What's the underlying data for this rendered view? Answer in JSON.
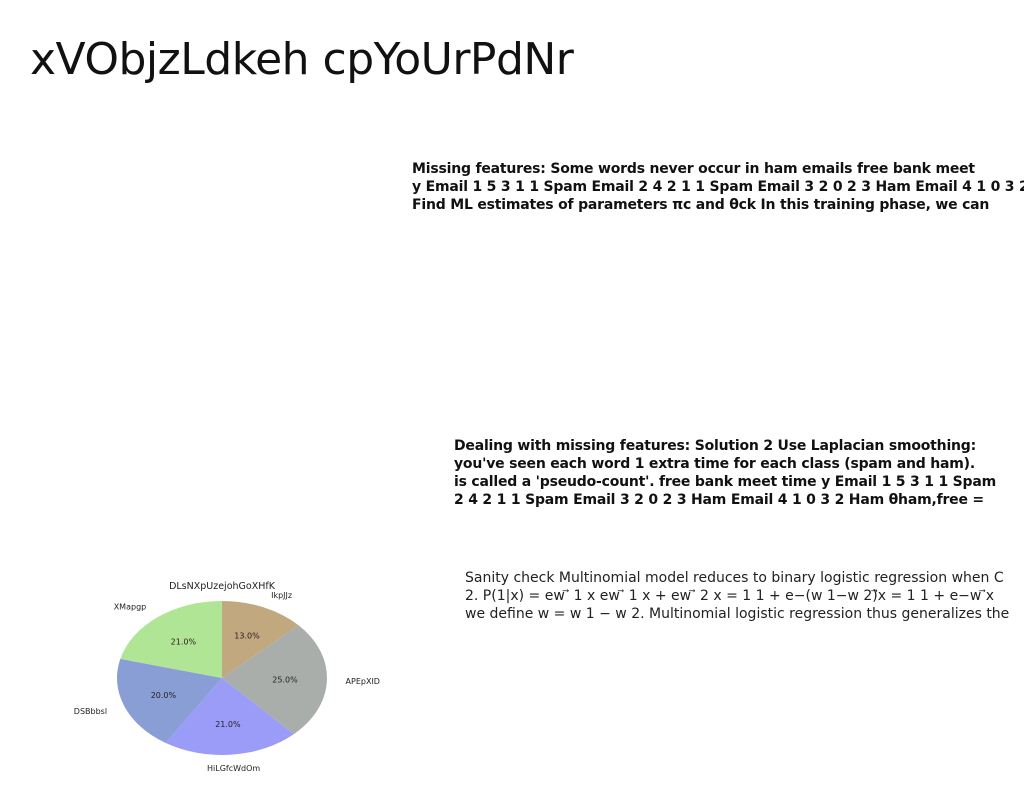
{
  "slide": {
    "title": "xVObjzLdkeh cpYoUrPdNr",
    "block1": {
      "lines": [
        "Missing features: Some words never occur in ham emails free bank meet",
        "y Email 1 5 3 1 1 Spam Email 2 4 2 1 1 Spam Email 3 2 0 2 3 Ham Email 4 1 0 3 2",
        "Find ML estimates of parameters πc and θck In this training phase, we can"
      ]
    },
    "block2": {
      "lines": [
        "Dealing with missing features: Solution 2 Use Laplacian smoothing:",
        "you've seen each word 1 extra time for each class (spam and ham).",
        "is called a 'pseudo-count'. free bank meet time y Email 1 5 3 1 1 Spam",
        "2 4 2 1 1 Spam Email 3 2 0 2 3 Ham Email 4 1 0 3 2 Ham θham,free ="
      ]
    },
    "block3": {
      "lines": [
        "Sanity check Multinomial model reduces to binary logistic regression when C",
        "2. P(1|x) = ew ⃗ 1 x ew ⃗ 1 x + ew ⃗ 2 x = 1 1 + e−(w 1−w 2)⃗x = 1 1 + e−w ⃗x",
        "we define w = w 1 − w 2. Multinomial logistic regression thus generalizes the"
      ]
    }
  },
  "chart_data": {
    "type": "pie",
    "title": "DLsNXpUzejohGoXHfK",
    "labels": [
      "IkpJJz",
      "APEpXID",
      "HiLGfcWdOm",
      "DSBbbsl",
      "XMapgp"
    ],
    "values": [
      13.0,
      25.0,
      21.0,
      20.0,
      21.0
    ],
    "value_labels": [
      "13.0%",
      "25.0%",
      "21.0%",
      "20.0%",
      "21.0%"
    ],
    "colors": [
      "#c2a87f",
      "#a9aeaa",
      "#9b9bf8",
      "#8a9ed6",
      "#b0e595"
    ],
    "start_angle_deg": 90,
    "direction": "clockwise"
  }
}
